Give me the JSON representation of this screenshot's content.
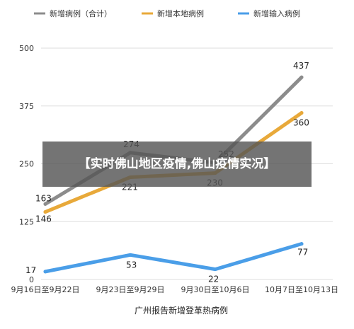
{
  "chart_data": {
    "type": "line",
    "categories": [
      "9月16日至9月22日",
      "9月23日至9月29日",
      "9月30日至10月6日",
      "10月7日至10月13日"
    ],
    "series": [
      {
        "name": "新增病例（合计）",
        "values": [
          163,
          274,
          252,
          437
        ],
        "color": "#8c8c8c",
        "labels": [
          "163",
          "274",
          "252",
          "437"
        ]
      },
      {
        "name": "新增本地病例",
        "values": [
          146,
          221,
          230,
          360
        ],
        "color": "#e8a93a",
        "labels": [
          "146",
          "221",
          "230",
          "360"
        ]
      },
      {
        "name": "新增输入病例",
        "values": [
          17,
          53,
          22,
          77
        ],
        "color": "#4a9ee8",
        "labels": [
          "17",
          "53",
          "22",
          "77"
        ]
      }
    ],
    "yticks": [
      "0",
      "125",
      "250",
      "375",
      "500"
    ],
    "ylim": [
      0,
      500
    ],
    "xlabel": "广州报告新增登革热病例",
    "grid": true,
    "legend_position": "top"
  },
  "overlay": {
    "text": "【实时佛山地区疫情,佛山疫情实况】"
  }
}
